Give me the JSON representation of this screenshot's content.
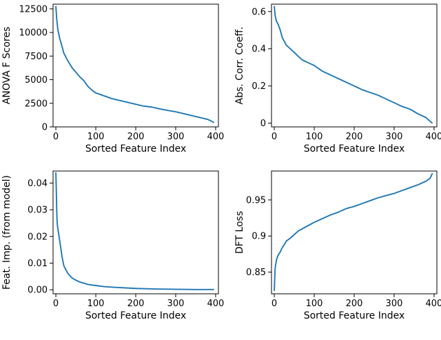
{
  "chart_data": [
    {
      "type": "line",
      "xlabel": "Sorted Feature Index",
      "ylabel": "ANOVA F Scores",
      "xlim": [
        -7,
        407
      ],
      "ylim": [
        0,
        13000
      ],
      "xticks": [
        0,
        100,
        200,
        300,
        400
      ],
      "yticks": [
        0,
        2500,
        5000,
        7500,
        10000,
        12500
      ],
      "grid": false,
      "series": [
        {
          "color": "#1f77b4",
          "x": [
            0,
            2,
            5,
            10,
            15,
            20,
            25,
            30,
            40,
            50,
            60,
            70,
            80,
            90,
            100,
            120,
            140,
            160,
            180,
            200,
            220,
            240,
            260,
            280,
            300,
            320,
            340,
            360,
            380,
            390,
            396
          ],
          "values": [
            12800,
            11500,
            10300,
            9300,
            8600,
            7800,
            7400,
            7000,
            6300,
            5800,
            5300,
            4900,
            4300,
            3900,
            3600,
            3300,
            3000,
            2800,
            2600,
            2400,
            2200,
            2100,
            1900,
            1750,
            1600,
            1400,
            1200,
            1000,
            800,
            600,
            450
          ]
        }
      ]
    },
    {
      "type": "line",
      "xlabel": "Sorted Feature Index",
      "ylabel": "Abs. Corr. Coeff.",
      "xlim": [
        -7,
        407
      ],
      "ylim": [
        -0.02,
        0.64
      ],
      "xticks": [
        0,
        100,
        200,
        300,
        400
      ],
      "yticks": [
        0.0,
        0.2,
        0.4,
        0.6
      ],
      "grid": false,
      "series": [
        {
          "color": "#1f77b4",
          "x": [
            0,
            2,
            5,
            10,
            15,
            20,
            25,
            30,
            40,
            50,
            60,
            70,
            80,
            90,
            100,
            120,
            140,
            160,
            180,
            200,
            220,
            240,
            260,
            280,
            300,
            320,
            340,
            360,
            380,
            390,
            396
          ],
          "values": [
            0.63,
            0.58,
            0.55,
            0.53,
            0.5,
            0.46,
            0.44,
            0.42,
            0.4,
            0.38,
            0.36,
            0.34,
            0.33,
            0.32,
            0.31,
            0.28,
            0.26,
            0.24,
            0.22,
            0.2,
            0.18,
            0.165,
            0.15,
            0.13,
            0.11,
            0.09,
            0.075,
            0.05,
            0.03,
            0.01,
            0.0
          ]
        }
      ]
    },
    {
      "type": "line",
      "xlabel": "Sorted Feature Index",
      "ylabel": "Feat. Imp. (from model)",
      "xlim": [
        -7,
        407
      ],
      "ylim": [
        -0.0015,
        0.0445
      ],
      "xticks": [
        0,
        100,
        200,
        300,
        400
      ],
      "yticks": [
        0.0,
        0.01,
        0.02,
        0.03,
        0.04
      ],
      "ytick_labels": [
        "0.00",
        "0.01",
        "0.02",
        "0.03",
        "0.04"
      ],
      "grid": false,
      "series": [
        {
          "color": "#1f77b4",
          "x": [
            0,
            1,
            2,
            3,
            4,
            5,
            7,
            10,
            13,
            16,
            20,
            25,
            30,
            35,
            40,
            50,
            60,
            70,
            80,
            100,
            120,
            150,
            200,
            250,
            300,
            350,
            396
          ],
          "values": [
            0.044,
            0.038,
            0.031,
            0.026,
            0.024,
            0.023,
            0.021,
            0.018,
            0.015,
            0.012,
            0.009,
            0.0075,
            0.0062,
            0.0053,
            0.0045,
            0.0036,
            0.0029,
            0.0025,
            0.002,
            0.0016,
            0.0012,
            0.0009,
            0.0005,
            0.0003,
            0.0002,
            0.0001,
            0.0001
          ]
        }
      ]
    },
    {
      "type": "line",
      "xlabel": "Sorted Feature Index",
      "ylabel": "DFT Loss",
      "xlim": [
        -7,
        407
      ],
      "ylim": [
        0.82,
        0.99
      ],
      "xticks": [
        0,
        100,
        200,
        300,
        400
      ],
      "yticks": [
        0.85,
        0.9,
        0.95
      ],
      "grid": false,
      "series": [
        {
          "color": "#1f77b4",
          "x": [
            0,
            1,
            2,
            4,
            6,
            10,
            15,
            20,
            25,
            30,
            40,
            50,
            60,
            70,
            80,
            90,
            100,
            120,
            140,
            160,
            180,
            200,
            220,
            240,
            260,
            280,
            300,
            320,
            340,
            360,
            380,
            390,
            396
          ],
          "values": [
            0.824,
            0.84,
            0.855,
            0.862,
            0.868,
            0.874,
            0.878,
            0.884,
            0.888,
            0.893,
            0.897,
            0.902,
            0.907,
            0.91,
            0.913,
            0.916,
            0.919,
            0.924,
            0.929,
            0.933,
            0.938,
            0.941,
            0.945,
            0.949,
            0.953,
            0.956,
            0.959,
            0.963,
            0.967,
            0.971,
            0.976,
            0.98,
            0.987
          ]
        }
      ]
    }
  ]
}
